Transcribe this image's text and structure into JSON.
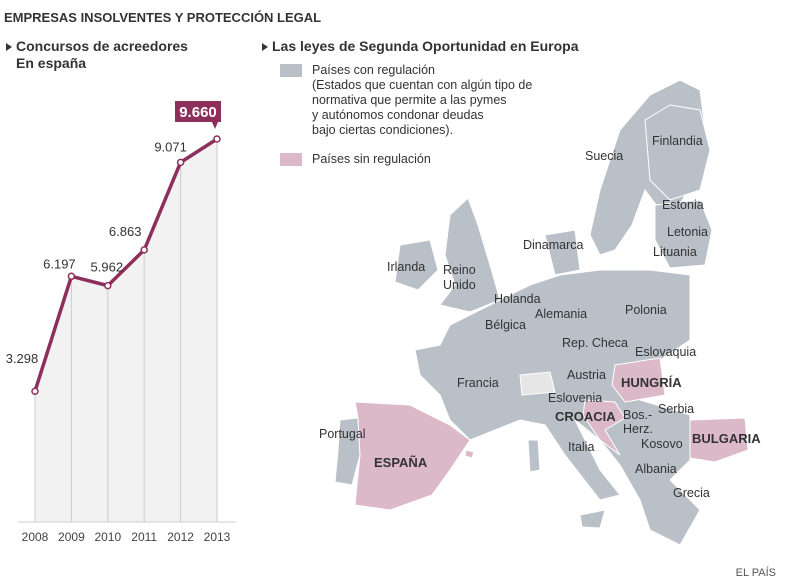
{
  "title": "EMPRESAS INSOLVENTES Y PROTECCIÓN LEGAL",
  "chart_subtitle": [
    "Concursos de acreedores",
    "En españa"
  ],
  "map_subtitle": "Las leyes de Segunda Oportunidad en Europa",
  "legend": {
    "with": {
      "label": "Países con regulación",
      "note": [
        "(Estados que cuentan con algún tipo de",
        "normativa que permite a las pymes",
        "y autónomos condonar deudas",
        "bajo ciertas condiciones)."
      ],
      "color": "#b9c0c8"
    },
    "without": {
      "label": "Países sin regulación",
      "color": "#dcb9c9"
    }
  },
  "colors": {
    "line": "#8c2f5b",
    "area": "#f2f2f3",
    "land_other": "#e6e6e6"
  },
  "chart_data": {
    "type": "area",
    "categories": [
      "2008",
      "2009",
      "2010",
      "2011",
      "2012",
      "2013"
    ],
    "values": [
      3298,
      6197,
      5962,
      6863,
      9071,
      9660
    ],
    "labels": [
      "3.298",
      "6.197",
      "5.962",
      "6.863",
      "9.071",
      "9.660"
    ],
    "highlight_index": 5,
    "ylim": [
      0,
      9660
    ],
    "grid": false
  },
  "map": {
    "with_regulation": [
      "Finlandia",
      "Suecia",
      "Estonia",
      "Letonia",
      "Lituania",
      "Dinamarca",
      "Irlanda",
      "Reino Unido",
      "Holanda",
      "Bélgica",
      "Alemania",
      "Polonia",
      "Rep. Checa",
      "Eslovaquia",
      "Austria",
      "Francia",
      "Eslovenia",
      "Serbia",
      "Portugal",
      "Italia",
      "Bos.-Herz.",
      "Kosovo",
      "Albania",
      "Grecia"
    ],
    "without_regulation": [
      "HUNGRÍA",
      "CROACIA",
      "ESPAÑA",
      "BULGARIA"
    ]
  },
  "source": "EL PAÍS"
}
